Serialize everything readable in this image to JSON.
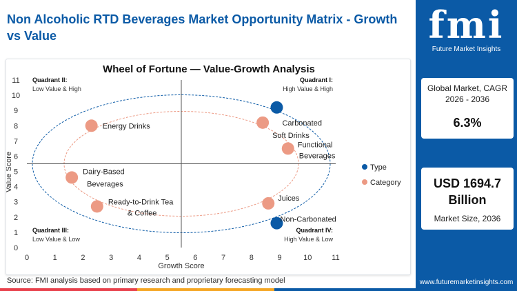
{
  "page": {
    "title": "Non Alcoholic RTD Beverages Market Opportunity Matrix - Growth vs Value",
    "source": "Source: FMI analysis based on primary research and proprietary forecasting model"
  },
  "brand": {
    "logo_text": "fmi",
    "tagline": "Future Market Insights",
    "website": "www.futuremarketinsights.com",
    "color": "#0b5aa6"
  },
  "stats": {
    "cagr_label": "Global Market, CAGR 2026 - 2036",
    "cagr_value": "6.3%",
    "size_value": "USD 1694.7 Billion",
    "size_label": "Market Size, 2036"
  },
  "chart_data": {
    "type": "scatter",
    "title": "Wheel of Fortune — Value-Growth Analysis",
    "xlabel": "Growth Score",
    "ylabel": "Value Score",
    "xlim": [
      0,
      11
    ],
    "ylim": [
      0,
      11
    ],
    "xticks": [
      0,
      1,
      2,
      3,
      4,
      5,
      6,
      7,
      8,
      9,
      10,
      11
    ],
    "yticks": [
      0,
      1,
      2,
      3,
      4,
      5,
      6,
      7,
      8,
      9,
      10,
      11
    ],
    "dividers": {
      "x": 5.5,
      "y": 5.5
    },
    "grid": false,
    "legend_position": "right",
    "quadrants": [
      {
        "id": "q2",
        "title": "Quadrant II:",
        "subtitle": "Low Value & High"
      },
      {
        "id": "q1",
        "title": "Quadrant I:",
        "subtitle": "High Value & High"
      },
      {
        "id": "q3",
        "title": "Quadrant III:",
        "subtitle": "Low Value & Low"
      },
      {
        "id": "q4",
        "title": "Quadrant IV:",
        "subtitle": "High Value & Low"
      }
    ],
    "series": [
      {
        "name": "Type",
        "color": "#0b5aa6",
        "points": [
          {
            "label": "Carbonated",
            "x": 8.9,
            "y": 9.2
          },
          {
            "label": "Non-Carbonated",
            "x": 8.9,
            "y": 1.6
          }
        ]
      },
      {
        "name": "Category",
        "color": "#ec9a84",
        "points": [
          {
            "label": "Energy Drinks",
            "x": 2.3,
            "y": 8.0
          },
          {
            "label": "Soft Drinks",
            "x": 8.4,
            "y": 8.2
          },
          {
            "label": "Functional Beverages",
            "x": 9.3,
            "y": 6.5
          },
          {
            "label": "Dairy-Based Beverages",
            "x": 1.6,
            "y": 4.6
          },
          {
            "label": "Ready-to-Drink Tea & Coffee",
            "x": 2.5,
            "y": 2.7
          },
          {
            "label": "Juices",
            "x": 8.6,
            "y": 2.9
          }
        ]
      }
    ]
  }
}
